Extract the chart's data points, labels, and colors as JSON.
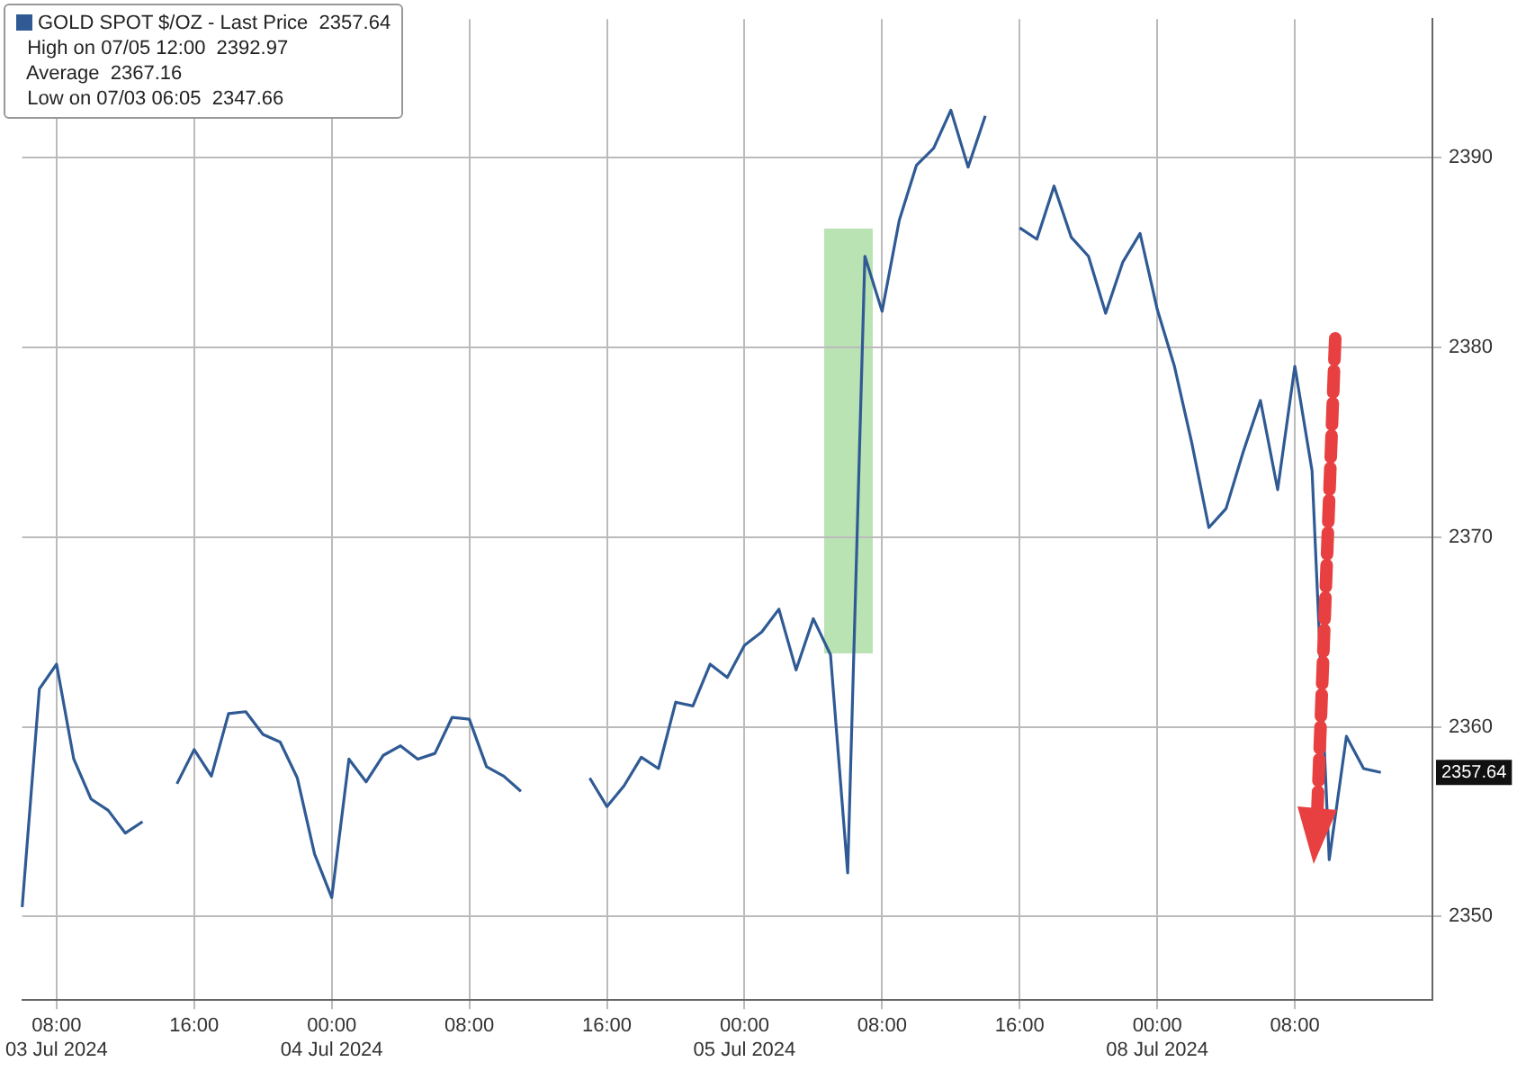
{
  "chart_data": {
    "type": "line",
    "categories": [
      null,
      null,
      "08:00\n03 Jul 2024",
      null,
      null,
      null,
      null,
      null,
      null,
      null,
      "16:00",
      null,
      null,
      null,
      null,
      null,
      null,
      null,
      "00:00\n04 Jul 2024",
      null,
      null,
      null,
      null,
      null,
      null,
      null,
      "08:00",
      null,
      null,
      null,
      null,
      null,
      null,
      null,
      "16:00",
      null,
      null,
      null,
      null,
      null,
      null,
      null,
      "00:00\n05 Jul 2024",
      null,
      null,
      null,
      null,
      null,
      null,
      null,
      "08:00",
      null,
      null,
      null,
      null,
      null,
      null,
      null,
      "16:00",
      null,
      null,
      null,
      null,
      null,
      null,
      null,
      "00:00\n08 Jul 2024",
      null,
      null,
      null,
      null,
      null,
      null,
      null,
      "08:00",
      null,
      null,
      null,
      null,
      null,
      null,
      null,
      null
    ],
    "series": [
      {
        "name": "GOLD SPOT $/OZ - Last Price",
        "color": "#2f5a94",
        "values": [
          2350.5,
          2362,
          2363.3,
          2358.3,
          2356.2,
          2355.6,
          2354.4,
          2355,
          null,
          2357,
          2358.8,
          2357.4,
          2360.7,
          2360.8,
          2359.6,
          2359.2,
          2357.3,
          2353.3,
          2351,
          2358.3,
          2357.1,
          2358.5,
          2359,
          2358.3,
          2358.6,
          2360.5,
          2360.4,
          2357.9,
          2357.4,
          2356.6,
          null,
          null,
          null,
          2357.3,
          2355.8,
          2356.9,
          2358.4,
          2357.8,
          2361.3,
          2361.1,
          2363.3,
          2362.6,
          2364.3,
          2365,
          2366.2,
          2363,
          2365.7,
          2363.8,
          2352.3,
          2384.8,
          2381.9,
          2386.7,
          2389.6,
          2390.5,
          2392.5,
          2389.5,
          2392.2,
          null,
          2386.3,
          2385.7,
          2388.5,
          2385.8,
          2384.8,
          2381.8,
          2384.5,
          2386,
          2382,
          2379,
          2375,
          2370.5,
          2371.5,
          2374.5,
          2377.2,
          2372.5,
          2379,
          2373.5,
          2353,
          2359.5,
          2357.8,
          2357.6,
          null,
          null,
          null
        ]
      }
    ],
    "ylim": [
      2345.6,
      2397.3
    ],
    "yticks": [
      2350,
      2360,
      2370,
      2380,
      2390
    ],
    "grid": true,
    "legend": "top left",
    "annotations": [
      "2357.64",
      "High on 07/05 12:00  2392.97",
      "Average  2367.16",
      "Low on 07/03 06:05  2347.66",
      "2357.64"
    ]
  }
}
